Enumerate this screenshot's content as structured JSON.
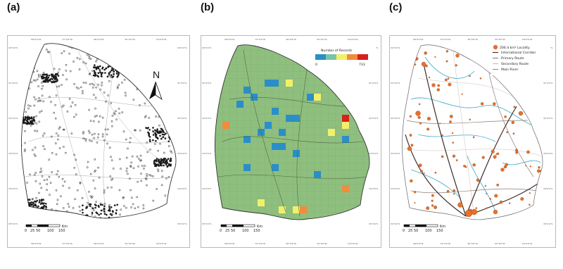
{
  "panels": [
    {
      "label": "(a)"
    },
    {
      "label": "(b)"
    },
    {
      "label": "(c)"
    }
  ],
  "top_ticks": [
    "58°0'0\"W",
    "57°0'0\"W",
    "56°0'0\"W",
    "55°0'0\"W",
    "54°0'0\"W"
  ],
  "side_ticks": [
    "30°0'0\"S",
    "31°0'0\"S",
    "32°0'0\"S",
    "33°0'0\"S",
    "34°0'0\"S",
    "35°0'0\"S"
  ],
  "scale_bar": {
    "labels": [
      "0",
      "25",
      "50",
      "100",
      "150"
    ],
    "unit": "Km"
  },
  "north_arrow": {
    "label": "N"
  },
  "records_legend": {
    "title": "Number of Records",
    "min": "0",
    "max": "733",
    "colors": [
      "#2a8ec9",
      "#7ac4a7",
      "#f2f06a",
      "#f08c3c",
      "#d9201c"
    ]
  },
  "network_legend": {
    "locality": "206.4 km² Locality",
    "items": [
      {
        "label": "International Corridor",
        "color": "#3c2a24"
      },
      {
        "label": "Primary Route",
        "color": "#8c7b74"
      },
      {
        "label": "Secondary Route",
        "color": "#c9bdb8"
      },
      {
        "label": "Main River",
        "color": "#3aa6c9"
      }
    ]
  },
  "colors": {
    "grid_green": "#8fbf7f",
    "locality_orange": "#e8702a",
    "record_point": "#1a1a1a"
  }
}
